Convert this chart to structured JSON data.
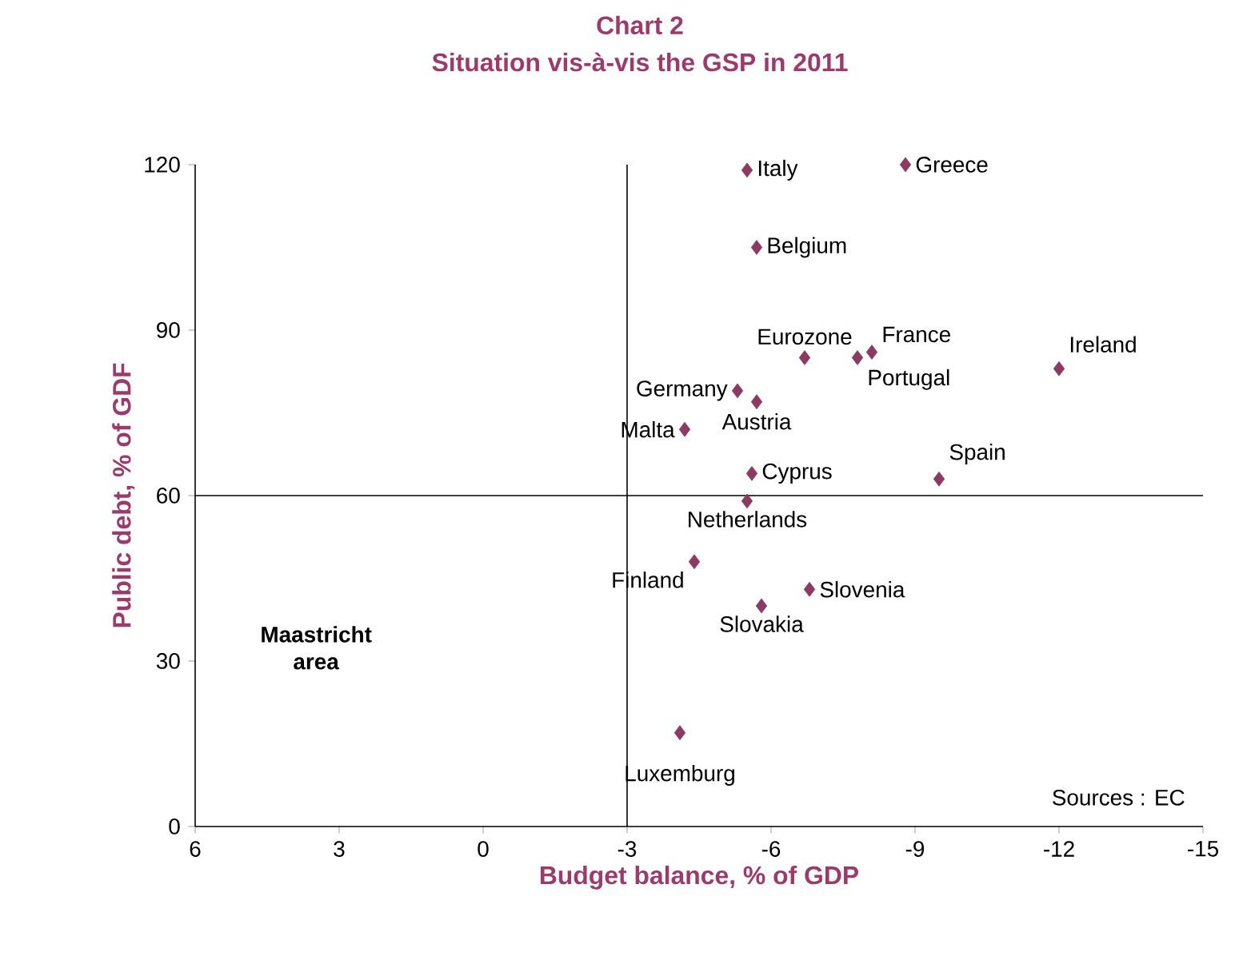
{
  "chart_data": {
    "type": "scatter",
    "title": "Chart 2",
    "subtitle": "Situation vis-à-vis the GSP in 2011",
    "xlabel": "Budget balance, % of GDP",
    "ylabel": "Public debt, % of GDF",
    "x": [
      -5.5,
      -8.8,
      -5.7,
      -6.7,
      -8.1,
      -12.0,
      -7.8,
      -5.3,
      -5.7,
      -4.2,
      -5.6,
      -9.5,
      -5.5,
      -4.4,
      -6.8,
      -5.8,
      -4.1
    ],
    "values": [
      119,
      120,
      105,
      85,
      86,
      83,
      85,
      79,
      77,
      72,
      64,
      63,
      59,
      48,
      43,
      40,
      17
    ],
    "color": "#8b3a62",
    "marker": "diamond",
    "grid": false,
    "xlim": [
      6,
      -15
    ],
    "xticks": [
      6,
      3,
      0,
      -3,
      -6,
      -9,
      -12,
      -15
    ],
    "ylim": [
      0,
      120
    ],
    "yticks": [
      0,
      30,
      60,
      90,
      120
    ],
    "ref_lines": [
      {
        "axis": "x",
        "value": -3,
        "color": "#000000"
      },
      {
        "axis": "y",
        "value": 60,
        "color": "#000000"
      }
    ],
    "annotations": [
      {
        "text": "Italy",
        "x": -5.5,
        "y": 119
      },
      {
        "text": "Greece",
        "x": -8.8,
        "y": 120
      },
      {
        "text": "Belgium",
        "x": -5.7,
        "y": 105
      },
      {
        "text": "Eurozone",
        "x": -6.7,
        "y": 85
      },
      {
        "text": "France",
        "x": -8.1,
        "y": 86
      },
      {
        "text": "Ireland",
        "x": -12.0,
        "y": 83
      },
      {
        "text": "Portugal",
        "x": -7.8,
        "y": 85
      },
      {
        "text": "Germany",
        "x": -5.3,
        "y": 79
      },
      {
        "text": "Austria",
        "x": -5.7,
        "y": 77
      },
      {
        "text": "Malta",
        "x": -4.2,
        "y": 72
      },
      {
        "text": "Cyprus",
        "x": -5.6,
        "y": 64
      },
      {
        "text": "Spain",
        "x": -9.5,
        "y": 63
      },
      {
        "text": "Netherlands",
        "x": -5.5,
        "y": 59
      },
      {
        "text": "Finland",
        "x": -4.4,
        "y": 48
      },
      {
        "text": "Slovenia",
        "x": -6.8,
        "y": 43
      },
      {
        "text": "Slovakia",
        "x": -5.8,
        "y": 40
      },
      {
        "text": "Luxemburg",
        "x": -4.1,
        "y": 17
      },
      "**Maastricht area**",
      "Sources : EC"
    ]
  }
}
